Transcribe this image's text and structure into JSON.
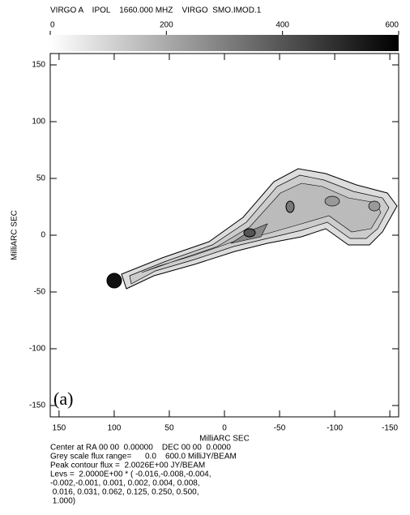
{
  "chart_data": {
    "type": "contour",
    "title": "VIRGO A    IPOL    1660.000 MHZ    VIRGO  SMO.IMOD.1",
    "xlabel": "MilliARC SEC",
    "ylabel": "MilliARC SEC",
    "panel_label": "(a)",
    "xlim": [
      158,
      -158
    ],
    "xticks": [
      150,
      100,
      50,
      0,
      -50,
      -100,
      -150
    ],
    "ylim": [
      -160,
      160
    ],
    "yticks": [
      150,
      100,
      50,
      0,
      -50,
      -100,
      -150
    ],
    "colorbar": {
      "lim": [
        0,
        600
      ],
      "ticks": [
        0,
        200,
        400,
        600
      ]
    },
    "notes": [
      "Center at RA 00 00  0.00000    DEC 00 00  0.0000",
      "Grey scale flux range=      0.0    600.0 MilliJY/BEAM",
      "Peak contour flux =  2.0026E+00 JY/BEAM",
      "Levs =  2.0000E+00 * ( -0.016,-0.008,-0.004,",
      "-0.002,-0.001, 0.001, 0.002, 0.004, 0.008,",
      " 0.016, 0.031, 0.062, 0.125, 0.250, 0.500,",
      " 1.000)"
    ]
  }
}
